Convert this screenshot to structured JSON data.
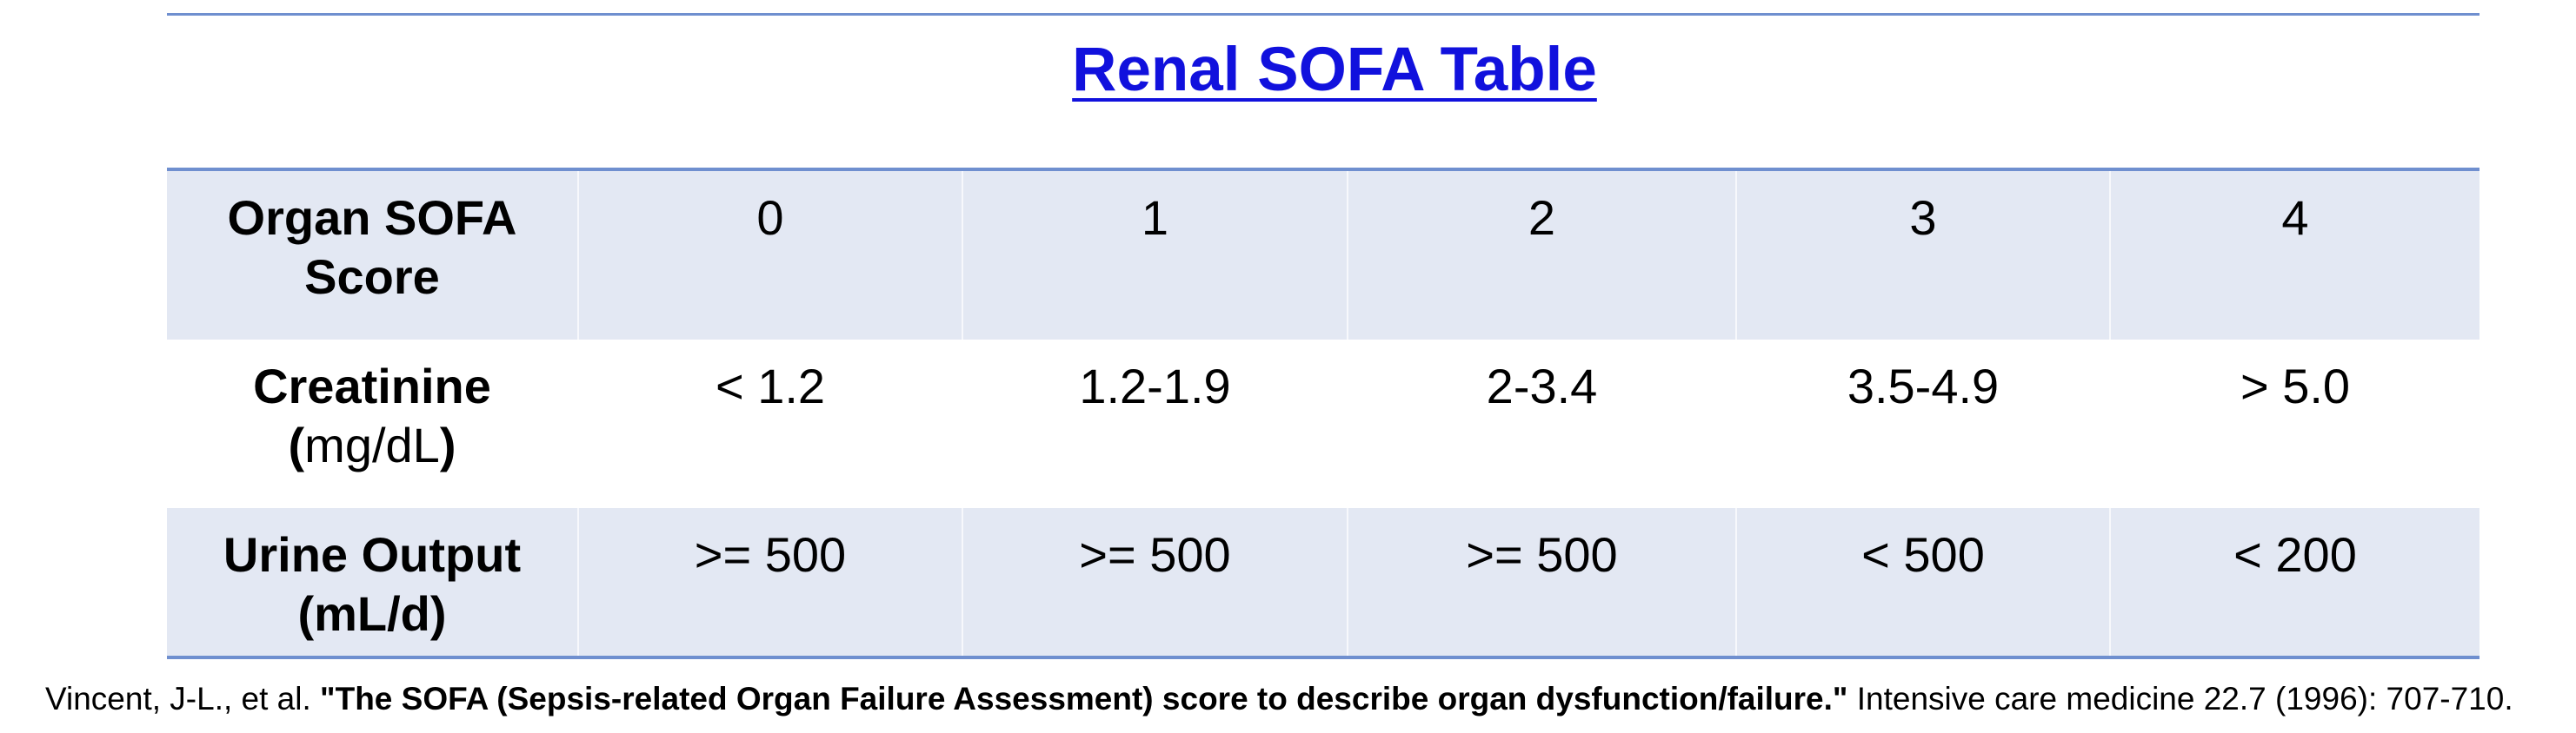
{
  "title": "Renal SOFA Table",
  "table": {
    "header": {
      "label_line1": "Organ SOFA",
      "label_line2": "Score",
      "values": [
        "0",
        "1",
        "2",
        "3",
        "4"
      ]
    },
    "rows": [
      {
        "label_line1": "Creatinine",
        "label_line2_prefix": "(",
        "label_line2_unit": "mg/dL",
        "label_line2_suffix": ")",
        "values": [
          "< 1.2",
          "1.2-1.9",
          "2-3.4",
          "3.5-4.9",
          "> 5.0"
        ]
      },
      {
        "label_line1": "Urine Output",
        "label_line2": "(mL/d)",
        "values": [
          ">= 500",
          ">= 500",
          ">= 500",
          "< 500",
          "< 200"
        ]
      }
    ]
  },
  "citation": {
    "authors": "Vincent, J-L., et al. ",
    "title": "\"The SOFA (Sepsis-related Organ Failure Assessment) score to describe organ dysfunction/failure.\"",
    "source": " Intensive care medicine 22.7 (1996): 707-710."
  },
  "colors": {
    "title": "#1111dd",
    "rule": "#6f8fcf",
    "shaded_row": "#e3e8f3"
  }
}
